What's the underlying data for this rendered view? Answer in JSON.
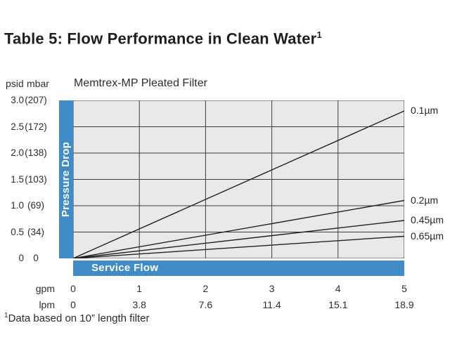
{
  "page": {
    "title": "Table 5: Flow Performance in Clean Water",
    "title_sup": "1",
    "footnote_sup": "1",
    "footnote": "Data based on 10” length filter"
  },
  "colors": {
    "accent_blue": "#3f8cc8",
    "plot_bg": "#e9e9e9",
    "grid_line": "#3d3d3d",
    "series_line": "#232323"
  },
  "chart_data": {
    "type": "line",
    "title": "Memtrex-MP Pleated Filter",
    "xlabel": "Service Flow",
    "ylabel": "Pressure Drop",
    "x_unit_primary": "gpm",
    "x_unit_secondary": "lpm",
    "y_unit_primary": "psid",
    "y_unit_secondary": "mbar",
    "xlim": [
      0,
      5
    ],
    "ylim": [
      0,
      3.0
    ],
    "grid": true,
    "legend_position": "right-of-line-ends",
    "x_ticks_gpm": [
      "0",
      "1",
      "2",
      "3",
      "4",
      "5"
    ],
    "x_ticks_lpm": [
      "0",
      "3.8",
      "7.6",
      "11.4",
      "15.1",
      "18.9"
    ],
    "y_ticks_psid": [
      "3.0",
      "2.5",
      "2.0",
      "1.5",
      "1.0",
      "0.5",
      "0"
    ],
    "y_ticks_mbar": [
      "(207)",
      "(172)",
      "(138)",
      "(103)",
      "(69)",
      "(34)",
      "0"
    ],
    "series": [
      {
        "name": "0.1µm",
        "x": [
          0,
          5
        ],
        "y": [
          0,
          2.8
        ]
      },
      {
        "name": "0.2µm",
        "x": [
          0,
          5
        ],
        "y": [
          0,
          1.1
        ]
      },
      {
        "name": "0.45µm",
        "x": [
          0,
          5
        ],
        "y": [
          0,
          0.72
        ]
      },
      {
        "name": "0.65µm",
        "x": [
          0,
          5
        ],
        "y": [
          0,
          0.42
        ]
      }
    ]
  }
}
